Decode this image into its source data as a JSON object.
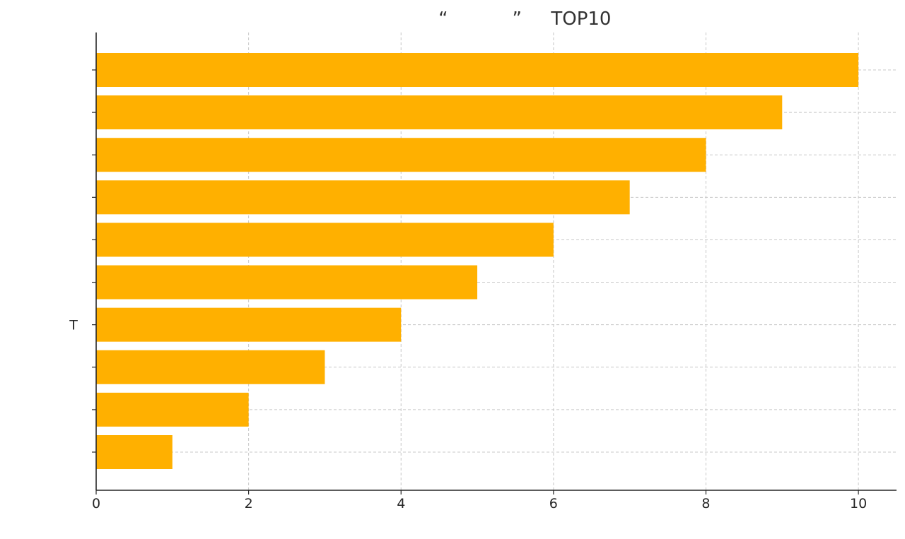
{
  "chart_data": {
    "type": "bar",
    "orientation": "horizontal",
    "title": "          “           ”     TOP10",
    "xlabel": "                        ",
    "ylabel": "",
    "categories": [
      "      ",
      "     ",
      "      ",
      "    T   ",
      "       ",
      "       ",
      "       ",
      "       ",
      "      ",
      "          "
    ],
    "values": [
      1,
      2,
      3,
      4,
      5,
      6,
      7,
      8,
      9,
      10
    ],
    "xlim": [
      0,
      10.5
    ],
    "xticks": [
      0,
      2,
      4,
      6,
      8,
      10
    ],
    "grid": true,
    "legend": "none",
    "bar_color": "#ffb000"
  }
}
